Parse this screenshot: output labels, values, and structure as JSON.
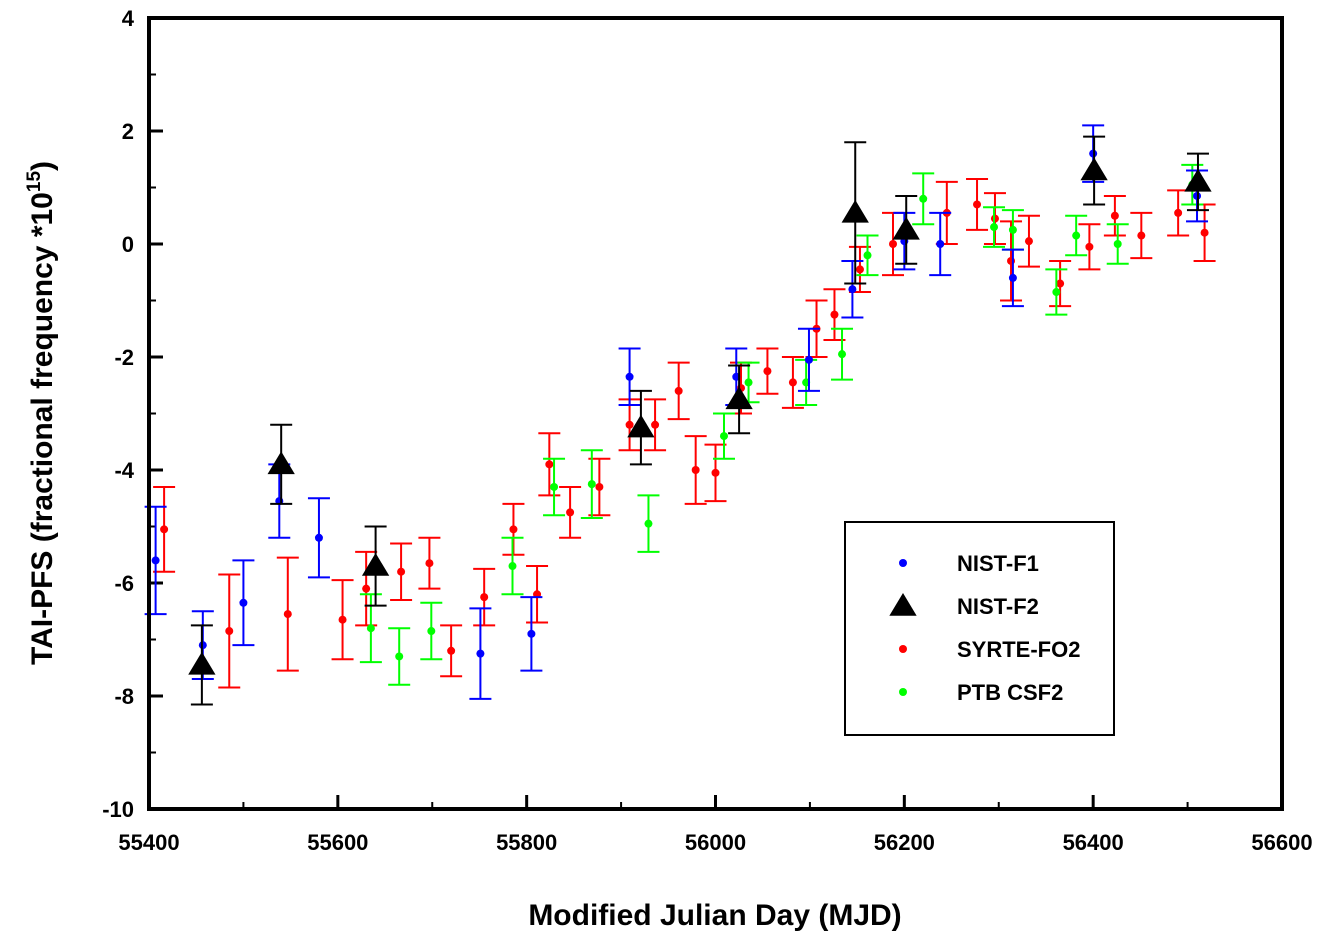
{
  "chart_data": {
    "type": "scatter",
    "title": "",
    "xlabel": "Modified Julian Day (MJD)",
    "ylabel": {
      "prefix": "TAI-PFS (fractional frequency *10",
      "exponent": "15",
      "suffix": ")"
    },
    "xlim": [
      55400,
      56600
    ],
    "ylim": [
      -10,
      4
    ],
    "x_ticks": [
      55400,
      55600,
      55800,
      56000,
      56200,
      56400,
      56600
    ],
    "y_ticks": [
      -10,
      -8,
      -6,
      -4,
      -2,
      0,
      2,
      4
    ],
    "grid": false,
    "legend_position": "lower-right",
    "series": [
      {
        "name": "NIST-F1",
        "color": "#0000ff",
        "marker": "circle",
        "points": [
          {
            "x": 55407,
            "y": -5.6,
            "err": 0.95
          },
          {
            "x": 55457,
            "y": -7.1,
            "err": 0.6
          },
          {
            "x": 55500,
            "y": -6.35,
            "err": 0.75
          },
          {
            "x": 55538,
            "y": -4.55,
            "err": 0.65
          },
          {
            "x": 55580,
            "y": -5.2,
            "err": 0.7
          },
          {
            "x": 55751,
            "y": -7.25,
            "err": 0.8
          },
          {
            "x": 55805,
            "y": -6.9,
            "err": 0.65
          },
          {
            "x": 55909,
            "y": -2.35,
            "err": 0.5
          },
          {
            "x": 56022,
            "y": -2.35,
            "err": 0.5
          },
          {
            "x": 56099,
            "y": -2.05,
            "err": 0.55
          },
          {
            "x": 56145,
            "y": -0.8,
            "err": 0.5
          },
          {
            "x": 56200,
            "y": 0.05,
            "err": 0.5
          },
          {
            "x": 56238,
            "y": 0.0,
            "err": 0.55
          },
          {
            "x": 56315,
            "y": -0.6,
            "err": 0.5
          },
          {
            "x": 56400,
            "y": 1.6,
            "err": 0.5
          },
          {
            "x": 56510,
            "y": 0.85,
            "err": 0.45
          }
        ]
      },
      {
        "name": "NIST-F2",
        "color": "#000000",
        "marker": "triangle",
        "points": [
          {
            "x": 55456,
            "y": -7.45,
            "err": 0.7
          },
          {
            "x": 55540,
            "y": -3.9,
            "err": 0.7
          },
          {
            "x": 55640,
            "y": -5.7,
            "err": 0.7
          },
          {
            "x": 55921,
            "y": -3.25,
            "err": 0.65
          },
          {
            "x": 56025,
            "y": -2.75,
            "err": 0.6
          },
          {
            "x": 56148,
            "y": 0.55,
            "err": 1.25
          },
          {
            "x": 56202,
            "y": 0.25,
            "err": 0.6
          },
          {
            "x": 56401,
            "y": 1.3,
            "err": 0.6
          },
          {
            "x": 56511,
            "y": 1.1,
            "err": 0.5
          }
        ]
      },
      {
        "name": "SYRTE-FO2",
        "color": "#ff0000",
        "marker": "circle",
        "points": [
          {
            "x": 55416,
            "y": -5.05,
            "err": 0.75
          },
          {
            "x": 55485,
            "y": -6.85,
            "err": 1.0
          },
          {
            "x": 55547,
            "y": -6.55,
            "err": 1.0
          },
          {
            "x": 55605,
            "y": -6.65,
            "err": 0.7
          },
          {
            "x": 55630,
            "y": -6.1,
            "err": 0.65
          },
          {
            "x": 55667,
            "y": -5.8,
            "err": 0.5
          },
          {
            "x": 55697,
            "y": -5.65,
            "err": 0.45
          },
          {
            "x": 55720,
            "y": -7.2,
            "err": 0.45
          },
          {
            "x": 55755,
            "y": -6.25,
            "err": 0.5
          },
          {
            "x": 55786,
            "y": -5.05,
            "err": 0.45
          },
          {
            "x": 55811,
            "y": -6.2,
            "err": 0.5
          },
          {
            "x": 55824,
            "y": -3.9,
            "err": 0.55
          },
          {
            "x": 55846,
            "y": -4.75,
            "err": 0.45
          },
          {
            "x": 55877,
            "y": -4.3,
            "err": 0.5
          },
          {
            "x": 55909,
            "y": -3.2,
            "err": 0.45
          },
          {
            "x": 55936,
            "y": -3.2,
            "err": 0.45
          },
          {
            "x": 55961,
            "y": -2.6,
            "err": 0.5
          },
          {
            "x": 55979,
            "y": -4.0,
            "err": 0.6
          },
          {
            "x": 56000,
            "y": -4.05,
            "err": 0.5
          },
          {
            "x": 56027,
            "y": -2.55,
            "err": 0.45
          },
          {
            "x": 56055,
            "y": -2.25,
            "err": 0.4
          },
          {
            "x": 56082,
            "y": -2.45,
            "err": 0.45
          },
          {
            "x": 56107,
            "y": -1.5,
            "err": 0.5
          },
          {
            "x": 56126,
            "y": -1.25,
            "err": 0.45
          },
          {
            "x": 56153,
            "y": -0.45,
            "err": 0.4
          },
          {
            "x": 56188,
            "y": 0.0,
            "err": 0.55
          },
          {
            "x": 56245,
            "y": 0.55,
            "err": 0.55
          },
          {
            "x": 56277,
            "y": 0.7,
            "err": 0.45
          },
          {
            "x": 56296,
            "y": 0.45,
            "err": 0.45
          },
          {
            "x": 56313,
            "y": -0.3,
            "err": 0.7
          },
          {
            "x": 56332,
            "y": 0.05,
            "err": 0.45
          },
          {
            "x": 56365,
            "y": -0.7,
            "err": 0.4
          },
          {
            "x": 56396,
            "y": -0.05,
            "err": 0.4
          },
          {
            "x": 56423,
            "y": 0.5,
            "err": 0.35
          },
          {
            "x": 56451,
            "y": 0.15,
            "err": 0.4
          },
          {
            "x": 56490,
            "y": 0.55,
            "err": 0.4
          },
          {
            "x": 56518,
            "y": 0.2,
            "err": 0.5
          }
        ]
      },
      {
        "name": "PTB CSF2",
        "color": "#00ff00",
        "marker": "circle",
        "points": [
          {
            "x": 55635,
            "y": -6.8,
            "err": 0.6
          },
          {
            "x": 55665,
            "y": -7.3,
            "err": 0.5
          },
          {
            "x": 55699,
            "y": -6.85,
            "err": 0.5
          },
          {
            "x": 55785,
            "y": -5.7,
            "err": 0.5
          },
          {
            "x": 55829,
            "y": -4.3,
            "err": 0.5
          },
          {
            "x": 55869,
            "y": -4.25,
            "err": 0.6
          },
          {
            "x": 55929,
            "y": -4.95,
            "err": 0.5
          },
          {
            "x": 56009,
            "y": -3.4,
            "err": 0.4
          },
          {
            "x": 56035,
            "y": -2.45,
            "err": 0.35
          },
          {
            "x": 56096,
            "y": -2.45,
            "err": 0.4
          },
          {
            "x": 56134,
            "y": -1.95,
            "err": 0.45
          },
          {
            "x": 56161,
            "y": -0.2,
            "err": 0.35
          },
          {
            "x": 56220,
            "y": 0.8,
            "err": 0.45
          },
          {
            "x": 56295,
            "y": 0.3,
            "err": 0.35
          },
          {
            "x": 56315,
            "y": 0.25,
            "err": 0.35
          },
          {
            "x": 56361,
            "y": -0.85,
            "err": 0.4
          },
          {
            "x": 56382,
            "y": 0.15,
            "err": 0.35
          },
          {
            "x": 56426,
            "y": 0.0,
            "err": 0.35
          },
          {
            "x": 56505,
            "y": 1.05,
            "err": 0.35
          }
        ]
      }
    ]
  }
}
